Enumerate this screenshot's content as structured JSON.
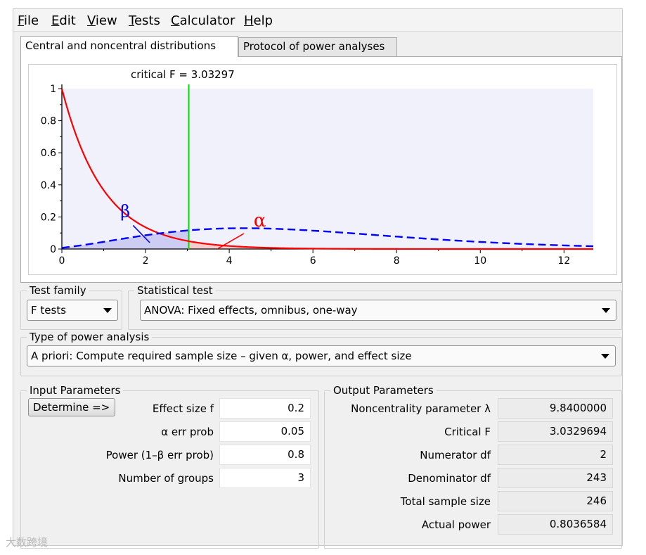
{
  "menu": {
    "items": [
      {
        "underline": "F",
        "rest": "ile"
      },
      {
        "underline": "E",
        "rest": "dit"
      },
      {
        "underline": "V",
        "rest": "iew"
      },
      {
        "underline": "T",
        "rest": "ests"
      },
      {
        "underline": "C",
        "rest": "alculator"
      },
      {
        "underline": "H",
        "rest": "elp"
      }
    ]
  },
  "tabs": [
    {
      "label": "Central and noncentral distributions",
      "active": true
    },
    {
      "label": "Protocol of power analyses",
      "active": false
    }
  ],
  "chart_data": {
    "type": "line",
    "annotation": "critical F =  3.03297",
    "critical_f": 3.03297,
    "xlim": [
      0,
      12.7
    ],
    "ylim": [
      0,
      1
    ],
    "x_ticks": [
      0,
      2,
      4,
      6,
      8,
      10,
      12
    ],
    "y_ticks": [
      0,
      0.2,
      0.4,
      0.6,
      0.8,
      1
    ],
    "y_tick_labels": [
      "0",
      "0.2",
      "0.4",
      "0.6",
      "0.8",
      "1"
    ],
    "series": [
      {
        "label": "α",
        "color": "#ff0000",
        "style": "solid",
        "df1": 2,
        "df2": 243,
        "lambda": 0
      },
      {
        "label": "β",
        "color": "#0000ff",
        "style": "dashed",
        "df1": 2,
        "df2": 243,
        "lambda": 9.84
      }
    ]
  },
  "test_family": {
    "title": "Test family",
    "value": "F tests"
  },
  "statistical_test": {
    "title": "Statistical test",
    "value": "ANOVA: Fixed effects, omnibus, one-way"
  },
  "power_analysis": {
    "title": "Type of power analysis",
    "value": "A priori: Compute required sample size – given α, power, and effect size"
  },
  "input": {
    "title": "Input Parameters",
    "determine_label": "Determine =>",
    "rows": [
      {
        "label": "Effect size f",
        "value": "0.2"
      },
      {
        "label": "α err prob",
        "value": "0.05"
      },
      {
        "label": "Power (1–β err prob)",
        "value": "0.8"
      },
      {
        "label": "Number of groups",
        "value": "3"
      }
    ]
  },
  "output": {
    "title": "Output Parameters",
    "rows": [
      {
        "label": "Noncentrality parameter λ",
        "value": "9.8400000"
      },
      {
        "label": "Critical F",
        "value": "3.0329694"
      },
      {
        "label": "Numerator df",
        "value": "2"
      },
      {
        "label": "Denominator df",
        "value": "243"
      },
      {
        "label": "Total sample size",
        "value": "246"
      },
      {
        "label": "Actual power",
        "value": "0.8036584"
      }
    ]
  },
  "watermark": "大数跨境"
}
